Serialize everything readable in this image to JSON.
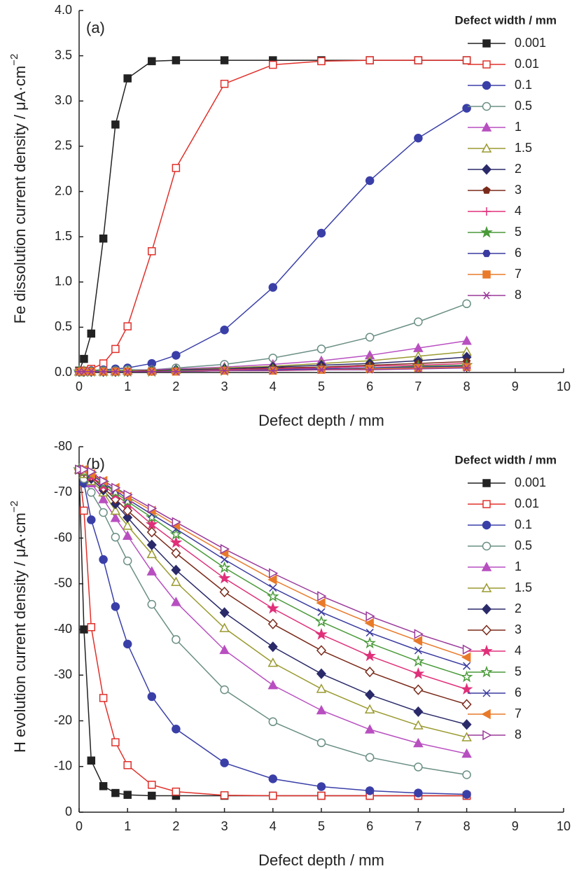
{
  "chart_data": [
    {
      "type": "line",
      "panel_label": "(a)",
      "ylabel": "Fe dissolution current density / μA·cm",
      "ylabel_sup": "−2",
      "xlabel": "Defect depth / mm",
      "legend_title": "Defect width / mm",
      "legend": "upper right",
      "x": [
        0,
        0.1,
        0.25,
        0.5,
        0.75,
        1,
        1.5,
        2,
        3,
        4,
        5,
        6,
        7,
        8
      ],
      "xlim": [
        0,
        10
      ],
      "xticks": [
        0,
        1,
        2,
        3,
        4,
        5,
        6,
        7,
        8,
        9,
        10
      ],
      "ylim": [
        0,
        4
      ],
      "yticks": [
        {
          "value": 0,
          "label": "0.0"
        },
        0.5,
        {
          "value": 1,
          "label": "1.0"
        },
        1.5,
        {
          "value": 2,
          "label": "2.0"
        },
        2.5,
        {
          "value": 3,
          "label": "3.0"
        },
        3.5,
        {
          "value": 4,
          "label": "4.0"
        }
      ],
      "series": [
        {
          "name": "0.001",
          "color": "#222222",
          "marker": "square",
          "filled": true,
          "values": [
            0.02,
            0.15,
            0.43,
            1.48,
            2.74,
            3.25,
            3.44,
            3.45,
            3.45,
            3.45,
            3.45,
            3.45,
            3.45,
            3.45
          ]
        },
        {
          "name": "0.01",
          "color": "#e0302a",
          "marker": "square",
          "filled": false,
          "values": [
            0.01,
            0.02,
            0.04,
            0.1,
            0.26,
            0.51,
            1.34,
            2.26,
            3.19,
            3.4,
            3.44,
            3.45,
            3.45,
            3.45
          ]
        },
        {
          "name": "0.1",
          "color": "#3a3fa8",
          "marker": "circle",
          "filled": true,
          "values": [
            0.01,
            0.01,
            0.02,
            0.03,
            0.04,
            0.05,
            0.1,
            0.19,
            0.47,
            0.94,
            1.54,
            2.12,
            2.59,
            2.92
          ]
        },
        {
          "name": "0.5",
          "color": "#6a8f85",
          "marker": "circle",
          "filled": false,
          "values": [
            0.01,
            0.01,
            0.01,
            0.02,
            0.02,
            0.03,
            0.03,
            0.05,
            0.09,
            0.16,
            0.26,
            0.39,
            0.56,
            0.76
          ]
        },
        {
          "name": "1",
          "color": "#b84fc0",
          "marker": "triangle",
          "filled": true,
          "values": [
            0.01,
            0.01,
            0.01,
            0.01,
            0.02,
            0.02,
            0.03,
            0.04,
            0.06,
            0.09,
            0.13,
            0.19,
            0.27,
            0.35
          ]
        },
        {
          "name": "1.5",
          "color": "#9a9a30",
          "marker": "triangle",
          "filled": false,
          "values": [
            0.01,
            0.01,
            0.01,
            0.01,
            0.01,
            0.02,
            0.02,
            0.03,
            0.05,
            0.07,
            0.1,
            0.13,
            0.18,
            0.23
          ]
        },
        {
          "name": "2",
          "color": "#2a2a6a",
          "marker": "diamond",
          "filled": true,
          "values": [
            0.01,
            0.01,
            0.01,
            0.01,
            0.01,
            0.01,
            0.02,
            0.03,
            0.04,
            0.06,
            0.08,
            0.1,
            0.13,
            0.17
          ]
        },
        {
          "name": "3",
          "color": "#7a2a1a",
          "marker": "pentagon",
          "filled": true,
          "values": [
            0.01,
            0.01,
            0.01,
            0.01,
            0.01,
            0.01,
            0.02,
            0.02,
            0.03,
            0.05,
            0.06,
            0.08,
            0.1,
            0.12
          ]
        },
        {
          "name": "4",
          "color": "#e0307a",
          "marker": "plus",
          "filled": true,
          "values": [
            0.01,
            0.01,
            0.01,
            0.01,
            0.01,
            0.01,
            0.01,
            0.02,
            0.03,
            0.04,
            0.05,
            0.07,
            0.08,
            0.1
          ]
        },
        {
          "name": "5",
          "color": "#4a9a3a",
          "marker": "star",
          "filled": true,
          "values": [
            0.01,
            0.01,
            0.01,
            0.01,
            0.01,
            0.01,
            0.01,
            0.02,
            0.02,
            0.03,
            0.04,
            0.05,
            0.07,
            0.08
          ]
        },
        {
          "name": "6",
          "color": "#3a3aa0",
          "marker": "hexagon",
          "filled": true,
          "values": [
            0.01,
            0.01,
            0.01,
            0.01,
            0.01,
            0.01,
            0.01,
            0.01,
            0.02,
            0.03,
            0.04,
            0.05,
            0.06,
            0.07
          ]
        },
        {
          "name": "7",
          "color": "#e87a2a",
          "marker": "square",
          "filled": true,
          "values": [
            0.01,
            0.01,
            0.01,
            0.01,
            0.01,
            0.01,
            0.01,
            0.01,
            0.02,
            0.02,
            0.03,
            0.04,
            0.05,
            0.06
          ]
        },
        {
          "name": "8",
          "color": "#9a3a9a",
          "marker": "asterisk",
          "filled": true,
          "values": [
            0.01,
            0.01,
            0.01,
            0.01,
            0.01,
            0.01,
            0.01,
            0.01,
            0.02,
            0.02,
            0.03,
            0.03,
            0.04,
            0.05
          ]
        }
      ]
    },
    {
      "type": "line",
      "panel_label": "(b)",
      "ylabel": "H evolution current density / μA·cm",
      "ylabel_sup": "−2",
      "xlabel": "Defect depth / mm",
      "legend_title": "Defect width / mm",
      "legend": "upper right",
      "x": [
        0,
        0.1,
        0.25,
        0.5,
        0.75,
        1,
        1.5,
        2,
        3,
        4,
        5,
        6,
        7,
        8
      ],
      "xlim": [
        0,
        10
      ],
      "xticks": [
        0,
        1,
        2,
        3,
        4,
        5,
        6,
        7,
        8,
        9,
        10
      ],
      "ylim": [
        0,
        -80
      ],
      "yticks": [
        0,
        -10,
        -20,
        -30,
        -40,
        -50,
        -60,
        -70,
        -80
      ],
      "series": [
        {
          "name": "0.001",
          "color": "#222222",
          "marker": "square",
          "filled": true,
          "values": [
            -75,
            -40,
            -11.3,
            -5.7,
            -4.2,
            -3.8,
            -3.6,
            -3.6,
            -3.6,
            -3.6,
            -3.6,
            -3.6,
            -3.6,
            -3.6
          ]
        },
        {
          "name": "0.01",
          "color": "#e0302a",
          "marker": "square",
          "filled": false,
          "values": [
            -75,
            -66,
            -40.5,
            -25,
            -15.3,
            -10.3,
            -6,
            -4.5,
            -3.7,
            -3.6,
            -3.6,
            -3.6,
            -3.6,
            -3.6
          ]
        },
        {
          "name": "0.1",
          "color": "#3a3fa8",
          "marker": "circle",
          "filled": true,
          "values": [
            -75,
            -72,
            -64,
            -55.3,
            -45,
            -36.8,
            -25.3,
            -18.2,
            -10.8,
            -7.3,
            -5.6,
            -4.7,
            -4.2,
            -3.9
          ]
        },
        {
          "name": "0.5",
          "color": "#6a8f85",
          "marker": "circle",
          "filled": false,
          "values": [
            -75,
            -73,
            -70,
            -65.6,
            -60.2,
            -55,
            -45.5,
            -37.8,
            -26.8,
            -19.8,
            -15.2,
            -12,
            -9.9,
            -8.2
          ]
        },
        {
          "name": "1",
          "color": "#b84fc0",
          "marker": "triangle",
          "filled": true,
          "values": [
            -75,
            -74,
            -72,
            -68.5,
            -64.4,
            -60.5,
            -52.7,
            -46,
            -35.5,
            -27.8,
            -22.3,
            -18.1,
            -15.1,
            -12.8
          ]
        },
        {
          "name": "1.5",
          "color": "#9a9a30",
          "marker": "triangle",
          "filled": false,
          "values": [
            -75,
            -74,
            -72.5,
            -70,
            -66,
            -62.7,
            -56.5,
            -50.4,
            -40.3,
            -32.7,
            -27,
            -22.5,
            -19,
            -16.4
          ]
        },
        {
          "name": "2",
          "color": "#2a2a6a",
          "marker": "diamond",
          "filled": true,
          "values": [
            -75,
            -74.5,
            -73,
            -70.5,
            -67.5,
            -64.5,
            -58.5,
            -53,
            -43.7,
            -36.2,
            -30.3,
            -25.7,
            -22,
            -19.2
          ]
        },
        {
          "name": "3",
          "color": "#7a2a1a",
          "marker": "diamond",
          "filled": false,
          "values": [
            -75,
            -74.5,
            -73.5,
            -71,
            -68.5,
            -66,
            -61.3,
            -56.7,
            -48.2,
            -41.2,
            -35.4,
            -30.7,
            -26.8,
            -23.6
          ]
        },
        {
          "name": "4",
          "color": "#e0307a",
          "marker": "star",
          "filled": true,
          "values": [
            -75,
            -74.5,
            -73.5,
            -71.5,
            -69.5,
            -67.5,
            -63,
            -59,
            -51.2,
            -44.6,
            -38.9,
            -34.2,
            -30.3,
            -26.9
          ]
        },
        {
          "name": "5",
          "color": "#4a9a3a",
          "marker": "star",
          "filled": false,
          "values": [
            -75,
            -74.5,
            -74,
            -72,
            -70,
            -68,
            -64.5,
            -60.8,
            -53.5,
            -47.2,
            -41.7,
            -37,
            -33,
            -29.6
          ]
        },
        {
          "name": "6",
          "color": "#3a3aa0",
          "marker": "cross",
          "filled": true,
          "values": [
            -75,
            -75,
            -74,
            -72,
            -70.5,
            -68.5,
            -65.2,
            -62,
            -55.3,
            -49.1,
            -43.8,
            -39.3,
            -35.4,
            -32
          ]
        },
        {
          "name": "7",
          "color": "#e87a2a",
          "marker": "tri-left",
          "filled": true,
          "values": [
            -75,
            -75,
            -74,
            -72.5,
            -71,
            -69,
            -66,
            -62.8,
            -56.7,
            -50.9,
            -45.8,
            -41.4,
            -37.5,
            -33.9
          ]
        },
        {
          "name": "8",
          "color": "#9a3a9a",
          "marker": "tri-right",
          "filled": false,
          "values": [
            -75,
            -75,
            -74.5,
            -72.5,
            -71,
            -69.5,
            -66.5,
            -63.5,
            -57.6,
            -52.3,
            -47.3,
            -42.9,
            -39,
            -35.6
          ]
        }
      ]
    }
  ]
}
